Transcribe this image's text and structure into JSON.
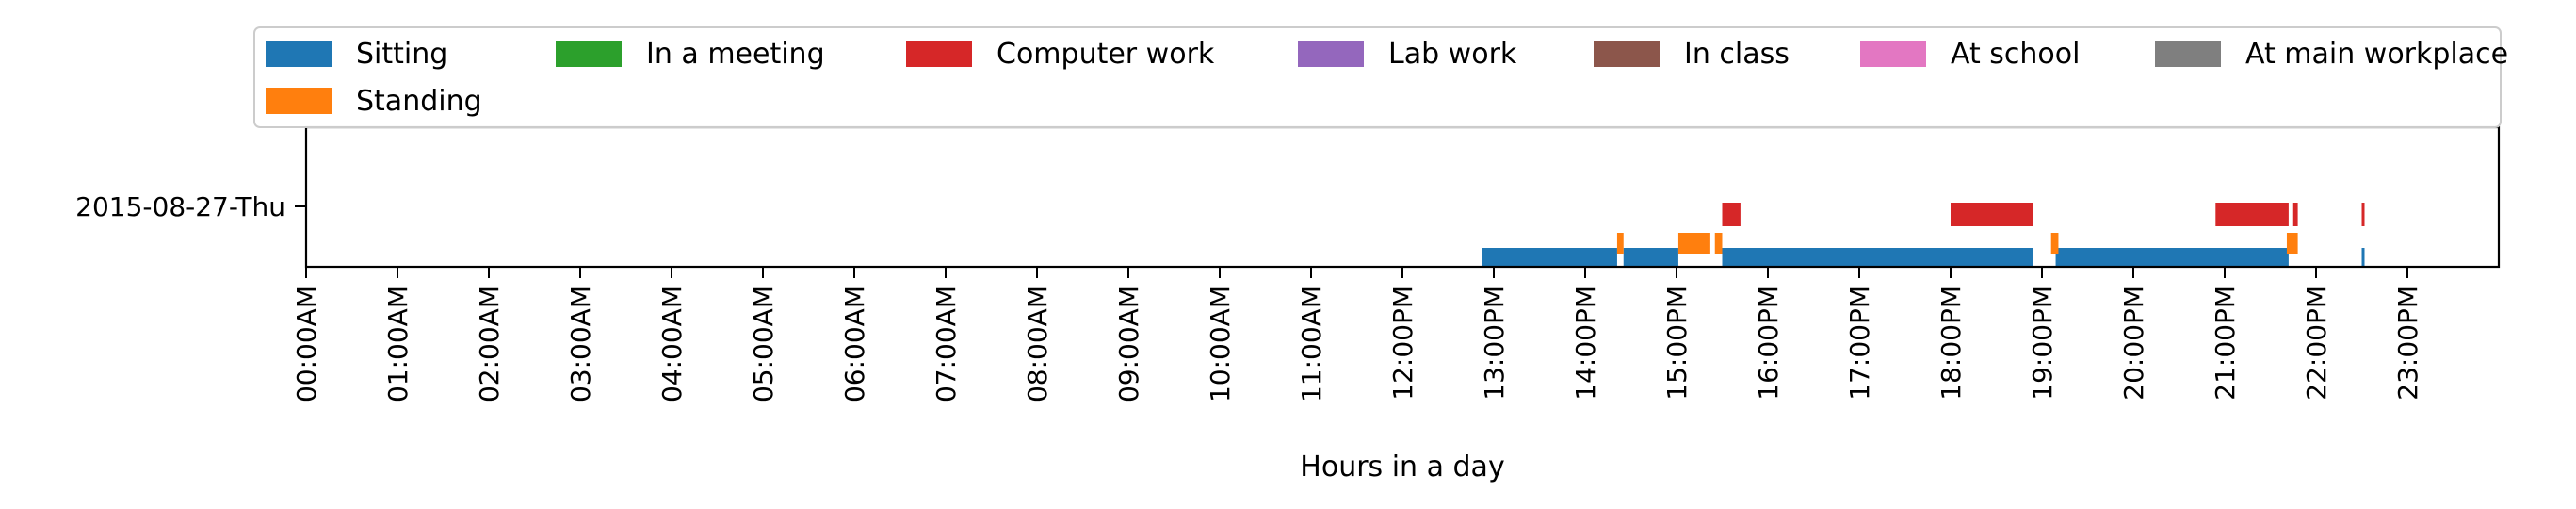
{
  "chart_data": {
    "type": "timeline",
    "xlabel": "Hours in a day",
    "xlim": [
      0,
      24
    ],
    "x_ticks": [
      "00:00AM",
      "01:00AM",
      "02:00AM",
      "03:00AM",
      "04:00AM",
      "05:00AM",
      "06:00AM",
      "07:00AM",
      "08:00AM",
      "09:00AM",
      "10:00AM",
      "11:00AM",
      "12:00PM",
      "13:00PM",
      "14:00PM",
      "15:00PM",
      "16:00PM",
      "17:00PM",
      "18:00PM",
      "19:00PM",
      "20:00PM",
      "21:00PM",
      "22:00PM",
      "23:00PM"
    ],
    "y_ticks": [
      "2015-08-27-Thu"
    ],
    "legend_position": "top",
    "series": [
      {
        "name": "Sitting",
        "color": "#1f77b4",
        "intervals": [
          [
            12.87,
            14.35
          ],
          [
            14.42,
            15.02
          ],
          [
            15.5,
            18.9
          ],
          [
            19.15,
            21.7
          ],
          [
            22.5,
            22.53
          ]
        ]
      },
      {
        "name": "Standing",
        "color": "#ff7f0e",
        "intervals": [
          [
            14.35,
            14.42
          ],
          [
            15.02,
            15.37
          ],
          [
            15.42,
            15.5
          ],
          [
            19.1,
            19.18
          ],
          [
            21.68,
            21.8
          ]
        ]
      },
      {
        "name": "In a meeting",
        "color": "#2ca02c",
        "intervals": []
      },
      {
        "name": "Computer work",
        "color": "#d62728",
        "intervals": [
          [
            15.5,
            15.7
          ],
          [
            18.0,
            18.9
          ],
          [
            20.9,
            21.7
          ],
          [
            21.75,
            21.8
          ],
          [
            22.5,
            22.53
          ]
        ]
      },
      {
        "name": "Lab work",
        "color": "#9467bd",
        "intervals": []
      },
      {
        "name": "In class",
        "color": "#8c564b",
        "intervals": []
      },
      {
        "name": "At school",
        "color": "#e377c2",
        "intervals": []
      },
      {
        "name": "At main workplace",
        "color": "#7f7f7f",
        "intervals": []
      }
    ]
  }
}
